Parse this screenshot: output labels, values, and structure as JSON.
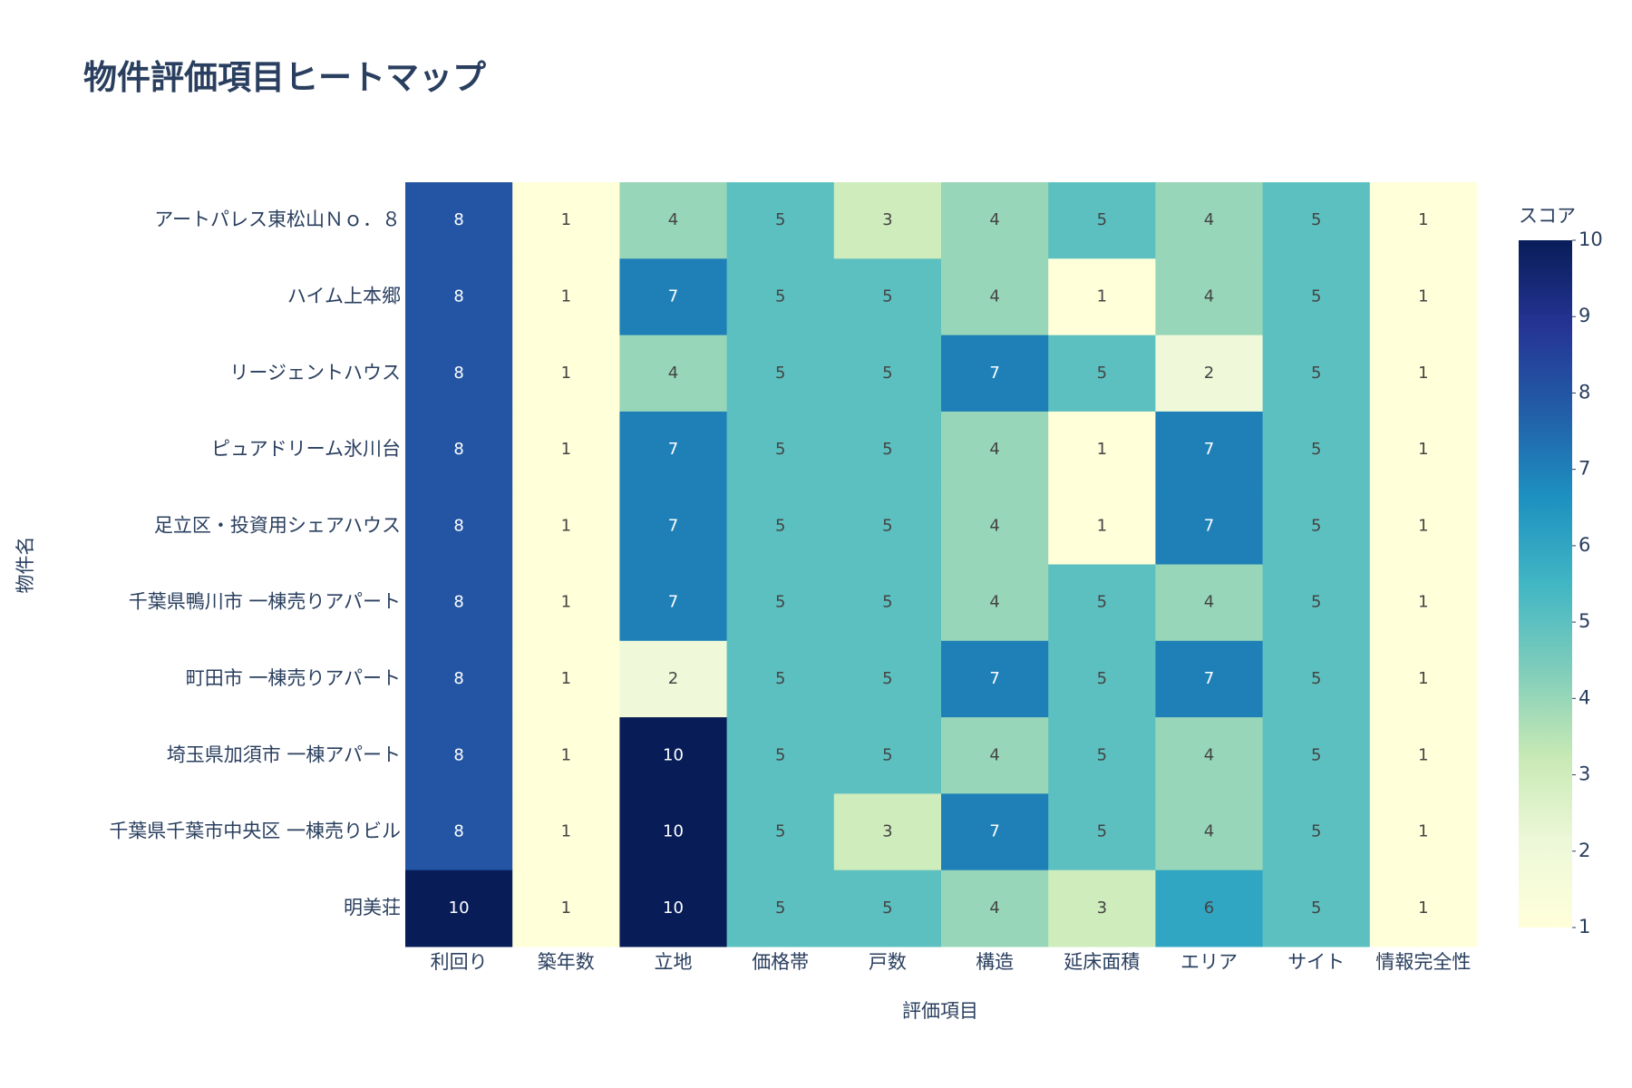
{
  "chart_data": {
    "type": "heatmap",
    "title": "物件評価項目ヒートマップ",
    "x_label": "評価項目",
    "y_label": "物件名",
    "x": [
      "利回り",
      "築年数",
      "立地",
      "価格帯",
      "戸数",
      "構造",
      "延床面積",
      "エリア",
      "サイト",
      "情報完全性"
    ],
    "y": [
      "アートパレス東松山Ｎｏ．８",
      "ハイム上本郷",
      "リージェントハウス",
      "ピュアドリーム氷川台",
      "足立区・投資用シェアハウス",
      "千葉県鴨川市 一棟売りアパート",
      "町田市 一棟売りアパート",
      "埼玉県加須市 一棟アパート",
      "千葉県千葉市中央区 一棟売りビル",
      "明美荘"
    ],
    "z": [
      [
        8,
        1,
        4,
        5,
        3,
        4,
        5,
        4,
        5,
        1
      ],
      [
        8,
        1,
        7,
        5,
        5,
        4,
        1,
        4,
        5,
        1
      ],
      [
        8,
        1,
        4,
        5,
        5,
        7,
        5,
        2,
        5,
        1
      ],
      [
        8,
        1,
        7,
        5,
        5,
        4,
        1,
        7,
        5,
        1
      ],
      [
        8,
        1,
        7,
        5,
        5,
        4,
        1,
        7,
        5,
        1
      ],
      [
        8,
        1,
        7,
        5,
        5,
        4,
        5,
        4,
        5,
        1
      ],
      [
        8,
        1,
        2,
        5,
        5,
        7,
        5,
        7,
        5,
        1
      ],
      [
        8,
        1,
        10,
        5,
        5,
        4,
        5,
        4,
        5,
        1
      ],
      [
        8,
        1,
        10,
        5,
        3,
        7,
        5,
        4,
        5,
        1
      ],
      [
        10,
        1,
        10,
        5,
        5,
        4,
        3,
        6,
        5,
        1
      ]
    ],
    "colorbar_title": "スコア",
    "zlim": [
      1,
      10
    ],
    "colorbar_ticks": [
      1,
      2,
      3,
      4,
      5,
      6,
      7,
      8,
      9,
      10
    ],
    "colorscale": [
      [
        0,
        "#ffffd9"
      ],
      [
        0.125,
        "#edf8d9"
      ],
      [
        0.25,
        "#c7e9b4"
      ],
      [
        0.375,
        "#7fcdbb"
      ],
      [
        0.5,
        "#41b6c4"
      ],
      [
        0.625,
        "#1d91c0"
      ],
      [
        0.75,
        "#225ea8"
      ],
      [
        0.875,
        "#253494"
      ],
      [
        1,
        "#081d58"
      ]
    ]
  }
}
